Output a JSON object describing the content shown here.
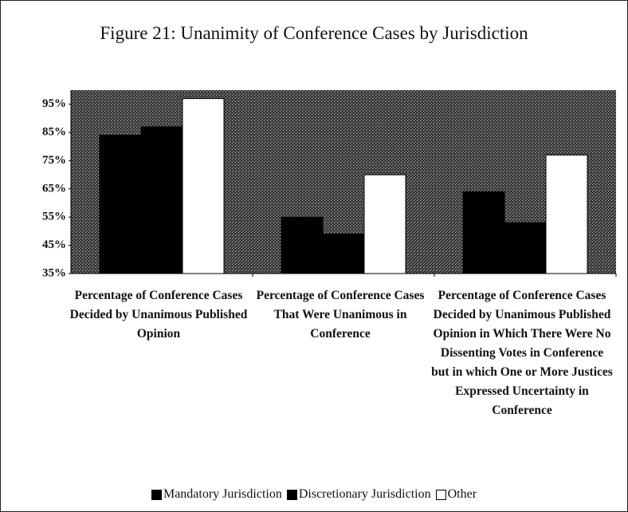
{
  "chart_data": {
    "type": "bar",
    "title": "Figure 21: Unanimity of Conference Cases by Jurisdiction",
    "categories": [
      "Percentage of Conference Cases Decided by Unanimous Published Opinion",
      "Percentage of Conference Cases That Were Unanimous in Conference",
      "Percentage of Conference Cases Decided by Unanimous Published Opinion in Which There Were No Dissenting Votes in Conference but in which One or More Justices Expressed Uncertainty in Conference"
    ],
    "series": [
      {
        "name": "Mandatory Jurisdiction",
        "color": "#000000",
        "values": [
          84,
          55,
          64
        ]
      },
      {
        "name": "Discretionary Jurisdiction",
        "color": "#000000",
        "values": [
          87,
          49,
          53
        ]
      },
      {
        "name": "Other",
        "color": "#ffffff",
        "values": [
          97,
          70,
          77
        ]
      }
    ],
    "ylim": [
      35,
      100
    ],
    "yticks": [
      {
        "value": 35,
        "label": "35%"
      },
      {
        "value": 45,
        "label": "45%"
      },
      {
        "value": 55,
        "label": "55%"
      },
      {
        "value": 65,
        "label": "65%"
      },
      {
        "value": 75,
        "label": "75%"
      },
      {
        "value": 85,
        "label": "85%"
      },
      {
        "value": 95,
        "label": "95%"
      }
    ]
  }
}
